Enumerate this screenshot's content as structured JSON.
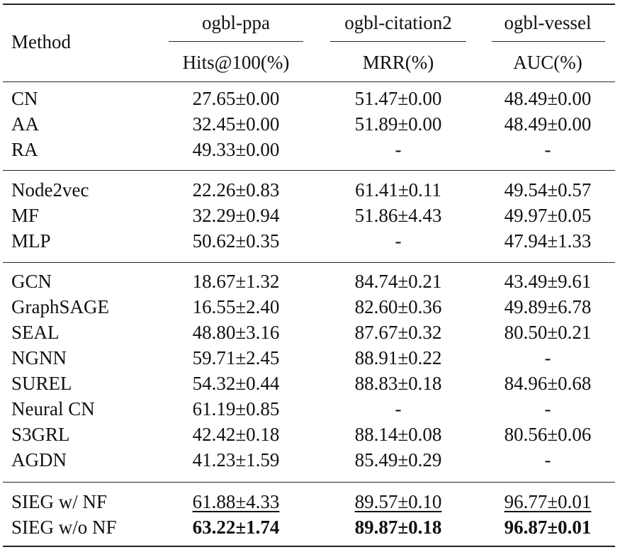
{
  "header": {
    "method": "Method",
    "datasets": [
      "ogbl-ppa",
      "ogbl-citation2",
      "ogbl-vessel"
    ],
    "metrics": [
      "Hits@100(%)",
      "MRR(%)",
      "AUC(%)"
    ]
  },
  "groups": [
    [
      {
        "method": "CN",
        "ppa": "27.65±0.00",
        "cit": "51.47±0.00",
        "ves": "48.49±0.00"
      },
      {
        "method": "AA",
        "ppa": "32.45±0.00",
        "cit": "51.89±0.00",
        "ves": "48.49±0.00"
      },
      {
        "method": "RA",
        "ppa": "49.33±0.00",
        "cit": "-",
        "ves": "-"
      }
    ],
    [
      {
        "method": "Node2vec",
        "ppa": "22.26±0.83",
        "cit": "61.41±0.11",
        "ves": "49.54±0.57"
      },
      {
        "method": "MF",
        "ppa": "32.29±0.94",
        "cit": "51.86±4.43",
        "ves": "49.97±0.05"
      },
      {
        "method": "MLP",
        "ppa": "50.62±0.35",
        "cit": "-",
        "ves": "47.94±1.33"
      }
    ],
    [
      {
        "method": "GCN",
        "ppa": "18.67±1.32",
        "cit": "84.74±0.21",
        "ves": "43.49±9.61"
      },
      {
        "method": "GraphSAGE",
        "ppa": "16.55±2.40",
        "cit": "82.60±0.36",
        "ves": "49.89±6.78"
      },
      {
        "method": "SEAL",
        "ppa": "48.80±3.16",
        "cit": "87.67±0.32",
        "ves": "80.50±0.21"
      },
      {
        "method": "NGNN",
        "ppa": "59.71±2.45",
        "cit": "88.91±0.22",
        "ves": "-"
      },
      {
        "method": "SUREL",
        "ppa": "54.32±0.44",
        "cit": "88.83±0.18",
        "ves": "84.96±0.68"
      },
      {
        "method": "Neural CN",
        "ppa": "61.19±0.85",
        "cit": "-",
        "ves": "-"
      },
      {
        "method": "S3GRL",
        "ppa": "42.42±0.18",
        "cit": "88.14±0.08",
        "ves": "80.56±0.06"
      },
      {
        "method": "AGDN",
        "ppa": "41.23±1.59",
        "cit": "85.49±0.29",
        "ves": "-"
      }
    ],
    [
      {
        "method": "SIEG w/ NF",
        "ppa": "61.88±4.33",
        "cit": "89.57±0.10",
        "ves": "96.77±0.01",
        "style": "underline"
      },
      {
        "method": "SIEG w/o NF",
        "ppa": "63.22±1.74",
        "cit": "89.87±0.18",
        "ves": "96.87±0.01",
        "style": "bold"
      }
    ]
  ]
}
